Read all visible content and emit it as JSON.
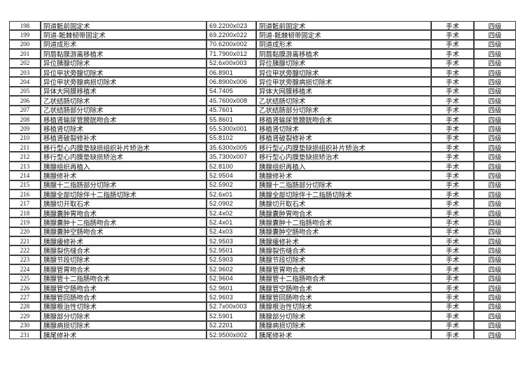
{
  "page": {
    "background_color": "#ffffff",
    "border_color": "#3e3e3e",
    "text_color": "#141414"
  },
  "table": {
    "columns": [
      "row_number",
      "procedure_name",
      "procedure_code",
      "procedure_name_repeat",
      "category",
      "level"
    ],
    "category_value": "手术",
    "level_value": "四级",
    "rows": [
      [
        "198",
        "阴道骶前固定术",
        "69.2200x023",
        "阴道骶前固定术",
        "手术",
        "四级"
      ],
      [
        "199",
        "阴道-骶棘韧带固定术",
        "69.2200x022",
        "阴道-骶棘韧带固定术",
        "手术",
        "四级"
      ],
      [
        "200",
        "阴道成形术",
        "70.6200x002",
        "阴道成形术",
        "手术",
        "四级"
      ],
      [
        "201",
        "阴唇黏膜游离移植术",
        "71.7900x012",
        "阴唇黏膜游离移植术",
        "手术",
        "四级"
      ],
      [
        "202",
        "异位胰腺切除术",
        "52.6x00x003",
        "异位胰腺切除术",
        "手术",
        "四级"
      ],
      [
        "203",
        "异位甲状旁腺切除术",
        "06.8901",
        "异位甲状旁腺切除术",
        "手术",
        "四级"
      ],
      [
        "204",
        "异位甲状旁腺病损切除术",
        "06.8900x006",
        "异位甲状旁腺病损切除术",
        "手术",
        "四级"
      ],
      [
        "205",
        "异体大网膜移植术",
        "54.7405",
        "异体大网膜移植术",
        "手术",
        "四级"
      ],
      [
        "206",
        "乙状结肠切除术",
        "45.7600x008",
        "乙状结肠切除术",
        "手术",
        "四级"
      ],
      [
        "207",
        "乙状结肠部分切除术",
        "45.7601",
        "乙状结肠部分切除术",
        "手术",
        "四级"
      ],
      [
        "208",
        "移植肾输尿管膀胱吻合术",
        "55.8601",
        "移植肾输尿管膀胱吻合术",
        "手术",
        "四级"
      ],
      [
        "209",
        "移植肾切除术",
        "55.5300x001",
        "移植肾切除术",
        "手术",
        "四级"
      ],
      [
        "210",
        "移植肾破裂修补术",
        "55.8102",
        "移植肾破裂修补术",
        "手术",
        "四级"
      ],
      [
        "211",
        "移行型心内膜垫缺损组织补片矫治术",
        "35.6300x005",
        "移行型心内膜垫缺损组织补片矫治术",
        "手术",
        "四级"
      ],
      [
        "212",
        "移行型心内膜垫缺损矫治术",
        "35.7300x007",
        "移行型心内膜垫缺损矫治术",
        "手术",
        "四级"
      ],
      [
        "213",
        "胰腺组织再植入",
        "52.8100",
        "胰腺组织再植入",
        "手术",
        "四级"
      ],
      [
        "214",
        "胰腺修补术",
        "52.9504",
        "胰腺修补术",
        "手术",
        "四级"
      ],
      [
        "215",
        "胰腺十二指肠部分切除术",
        "52.5902",
        "胰腺十二指肠部分切除术",
        "手术",
        "四级"
      ],
      [
        "216",
        "胰腺全部切除伴十二指肠切除术",
        "52.6x01",
        "胰腺全部切除伴十二指肠切除术",
        "手术",
        "四级"
      ],
      [
        "217",
        "胰腺切开取石术",
        "52.0902",
        "胰腺切开取石术",
        "手术",
        "四级"
      ],
      [
        "218",
        "胰腺囊肿胃吻合术",
        "52.4x02",
        "胰腺囊肿胃吻合术",
        "手术",
        "四级"
      ],
      [
        "219",
        "胰腺囊肿十二指肠吻合术",
        "52.4x01",
        "胰腺囊肿十二指肠吻合术",
        "手术",
        "四级"
      ],
      [
        "220",
        "胰腺囊肿空肠吻合术",
        "52.4x03",
        "胰腺囊肿空肠吻合术",
        "手术",
        "四级"
      ],
      [
        "221",
        "胰腺瘘修补术",
        "52.9503",
        "胰腺瘘修补术",
        "手术",
        "四级"
      ],
      [
        "222",
        "胰腺裂伤缝合术",
        "52.9501",
        "胰腺裂伤缝合术",
        "手术",
        "四级"
      ],
      [
        "223",
        "胰腺节段切除术",
        "52.5903",
        "胰腺节段切除术",
        "手术",
        "四级"
      ],
      [
        "224",
        "胰腺管胃吻合术",
        "52.9602",
        "胰腺管胃吻合术",
        "手术",
        "四级"
      ],
      [
        "225",
        "胰腺管十二指肠吻合术",
        "52.9604",
        "胰腺管十二指肠吻合术",
        "手术",
        "四级"
      ],
      [
        "226",
        "胰腺管空肠吻合术",
        "52.9601",
        "胰腺管空肠吻合术",
        "手术",
        "四级"
      ],
      [
        "227",
        "胰腺管回肠吻合术",
        "52.9603",
        "胰腺管回肠吻合术",
        "手术",
        "四级"
      ],
      [
        "228",
        "胰腺根治性切除术",
        "52.7x00x003",
        "胰腺根治性切除术",
        "手术",
        "四级"
      ],
      [
        "229",
        "胰腺部分切除术",
        "52.5901",
        "胰腺部分切除术",
        "手术",
        "四级"
      ],
      [
        "230",
        "胰腺病损切除术",
        "52.2201",
        "胰腺病损切除术",
        "手术",
        "四级"
      ],
      [
        "231",
        "胰尾修补术",
        "52.9500x002",
        "胰尾修补术",
        "手术",
        "四级"
      ]
    ]
  }
}
